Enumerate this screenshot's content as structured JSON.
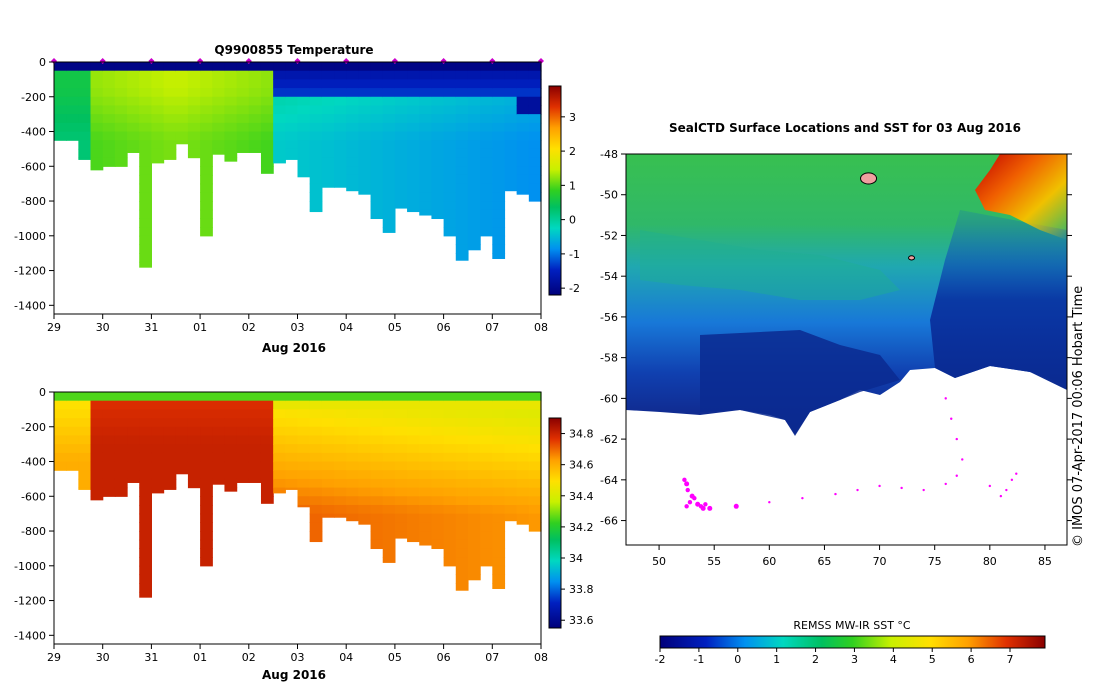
{
  "chart_data": [
    {
      "type": "heatmap",
      "title": "Q9900855  Temperature",
      "xlabel": "Aug 2016",
      "x_ticks": [
        "29",
        "30",
        "31",
        "01",
        "02",
        "03",
        "04",
        "05",
        "06",
        "07",
        "08"
      ],
      "y_ticks": [
        0,
        -200,
        -400,
        -600,
        -800,
        -1000,
        -1200,
        -1400
      ],
      "ylim": [
        -1450,
        0
      ],
      "colorbar": {
        "min": -2.2,
        "max": 3.9,
        "ticks": [
          3,
          2,
          1,
          0,
          -1,
          -2
        ]
      },
      "profile_days": [
        0.0,
        0.25,
        0.5,
        0.75,
        1.0,
        1.25,
        1.5,
        1.75,
        2.0,
        2.25,
        2.5,
        2.75,
        3.0,
        3.25,
        3.5,
        3.75,
        4.0,
        4.25,
        4.5,
        4.75,
        5.0,
        5.25,
        5.5,
        5.75,
        6.0,
        6.25,
        6.5,
        6.75,
        7.0,
        7.25,
        7.5,
        7.75,
        8.0,
        8.25,
        8.5,
        8.75,
        9.0,
        9.25,
        9.5,
        9.75
      ],
      "profile_depths": [
        450,
        450,
        560,
        620,
        600,
        600,
        520,
        1180,
        580,
        560,
        470,
        550,
        1000,
        530,
        570,
        520,
        520,
        640,
        580,
        560,
        660,
        860,
        720,
        720,
        740,
        760,
        900,
        980,
        840,
        860,
        880,
        900,
        1000,
        1140,
        1080,
        1000,
        1130,
        740,
        760,
        800
      ],
      "surface_band_days": [
        0,
        1,
        2,
        3,
        4,
        5,
        6,
        7,
        8,
        9,
        10
      ],
      "markers_days": [
        0,
        1,
        2,
        3,
        4,
        5,
        6,
        7,
        8,
        9,
        10
      ]
    },
    {
      "type": "heatmap",
      "title": "",
      "xlabel": "Aug 2016",
      "x_ticks": [
        "29",
        "30",
        "31",
        "01",
        "02",
        "03",
        "04",
        "05",
        "06",
        "07",
        "08"
      ],
      "y_ticks": [
        0,
        -200,
        -400,
        -600,
        -800,
        -1000,
        -1200,
        -1400
      ],
      "ylim": [
        -1450,
        0
      ],
      "colorbar": {
        "min": 33.55,
        "max": 34.9,
        "ticks": [
          "34.8",
          "34.6",
          "34.4",
          "34.2",
          "34",
          "33.8",
          "33.6"
        ]
      },
      "profile_days": [
        0.0,
        0.25,
        0.5,
        0.75,
        1.0,
        1.25,
        1.5,
        1.75,
        2.0,
        2.25,
        2.5,
        2.75,
        3.0,
        3.25,
        3.5,
        3.75,
        4.0,
        4.25,
        4.5,
        4.75,
        5.0,
        5.25,
        5.5,
        5.75,
        6.0,
        6.25,
        6.5,
        6.75,
        7.0,
        7.25,
        7.5,
        7.75,
        8.0,
        8.25,
        8.5,
        8.75,
        9.0,
        9.25,
        9.5,
        9.75
      ],
      "profile_depths": [
        450,
        450,
        560,
        620,
        600,
        600,
        520,
        1180,
        580,
        560,
        470,
        550,
        1000,
        530,
        570,
        520,
        520,
        640,
        580,
        560,
        660,
        860,
        720,
        720,
        740,
        760,
        900,
        980,
        840,
        860,
        880,
        900,
        1000,
        1140,
        1080,
        1000,
        1130,
        740,
        760,
        800
      ]
    },
    {
      "type": "heatmap",
      "title": "SealCTD Surface Locations and SST for 03 Aug 2016",
      "xlabel": "",
      "x_ticks": [
        "50",
        "55",
        "60",
        "65",
        "70",
        "75",
        "80",
        "85"
      ],
      "y_ticks": [
        "-48",
        "-50",
        "-52",
        "-54",
        "-56",
        "-58",
        "-60",
        "-62",
        "-64",
        "-66"
      ],
      "xlim": [
        47,
        87
      ],
      "ylim": [
        -67.2,
        -48
      ],
      "colorbar": {
        "label": "REMSS MW-IR SST °C",
        "min": -2,
        "max": 7.9,
        "ticks": [
          "-2",
          "-1",
          "0",
          "1",
          "2",
          "3",
          "4",
          "5",
          "6",
          "7"
        ]
      },
      "side_label": "© IMOS 07-Apr-2017 00:06 Hobart Time",
      "track_points": [
        [
          52.5,
          -64.2
        ],
        [
          53.0,
          -64.8
        ],
        [
          53.5,
          -65.2
        ],
        [
          54.0,
          -65.4
        ],
        [
          54.6,
          -65.4
        ],
        [
          57,
          -65.3
        ],
        [
          60,
          -65.1
        ],
        [
          63,
          -64.9
        ],
        [
          66,
          -64.7
        ],
        [
          68,
          -64.5
        ],
        [
          70,
          -64.3
        ],
        [
          72,
          -64.4
        ],
        [
          74,
          -64.5
        ],
        [
          76,
          -64.2
        ],
        [
          77,
          -63.8
        ],
        [
          77.5,
          -63
        ],
        [
          77,
          -62
        ],
        [
          76.5,
          -61
        ],
        [
          76,
          -60
        ],
        [
          80,
          -64.3
        ],
        [
          81,
          -64.8
        ],
        [
          81.5,
          -64.5
        ],
        [
          82,
          -64
        ],
        [
          82.4,
          -63.7
        ]
      ],
      "seal_markers": [
        [
          69.0,
          -49.2
        ],
        [
          72.9,
          -53.1
        ]
      ]
    }
  ]
}
